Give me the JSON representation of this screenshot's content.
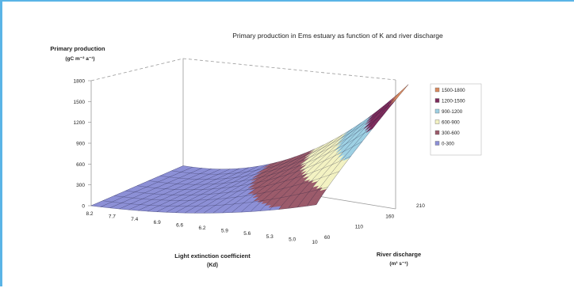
{
  "chart_data": {
    "type": "surface",
    "title": "Primary production in Ems estuary as function of K and river discharge",
    "zlabel": "Primary production",
    "zunit": "(gC m⁻² a⁻¹)",
    "xlabel": "Light extinction coefficient",
    "xunit": "(Kd)",
    "ylabel": "River discharge",
    "yunit": "(m³ s⁻¹)",
    "x_ticks": [
      "8.2",
      "7.7",
      "7.4",
      "6.9",
      "6.6",
      "6.2",
      "5.9",
      "5.6",
      "5.3",
      "5.0",
      "10"
    ],
    "y_ticks": [
      "60",
      "110",
      "160",
      "210"
    ],
    "z_ticks": [
      "0",
      "300",
      "600",
      "900",
      "1200",
      "1500",
      "1800"
    ],
    "zlim": [
      0,
      1800
    ],
    "legend": {
      "placement": "right",
      "items": [
        {
          "label": "1500-1800",
          "color": "#d98a5e"
        },
        {
          "label": "1200-1500",
          "color": "#7d2a5a"
        },
        {
          "label": "900-1200",
          "color": "#9dd0e3"
        },
        {
          "label": "600-900",
          "color": "#f3f2c2"
        },
        {
          "label": "300-600",
          "color": "#9b5a6a"
        },
        {
          "label": "0-300",
          "color": "#8c8fd6"
        }
      ]
    },
    "bands": [
      {
        "range": "0-300",
        "color": "#8c8fd6"
      },
      {
        "range": "300-600",
        "color": "#9b5a6a"
      },
      {
        "range": "600-900",
        "color": "#f3f2c2"
      },
      {
        "range": "900-1200",
        "color": "#9dd0e3"
      },
      {
        "range": "1200-1500",
        "color": "#7d2a5a"
      },
      {
        "range": "1500-1800",
        "color": "#d98a5e"
      }
    ]
  }
}
